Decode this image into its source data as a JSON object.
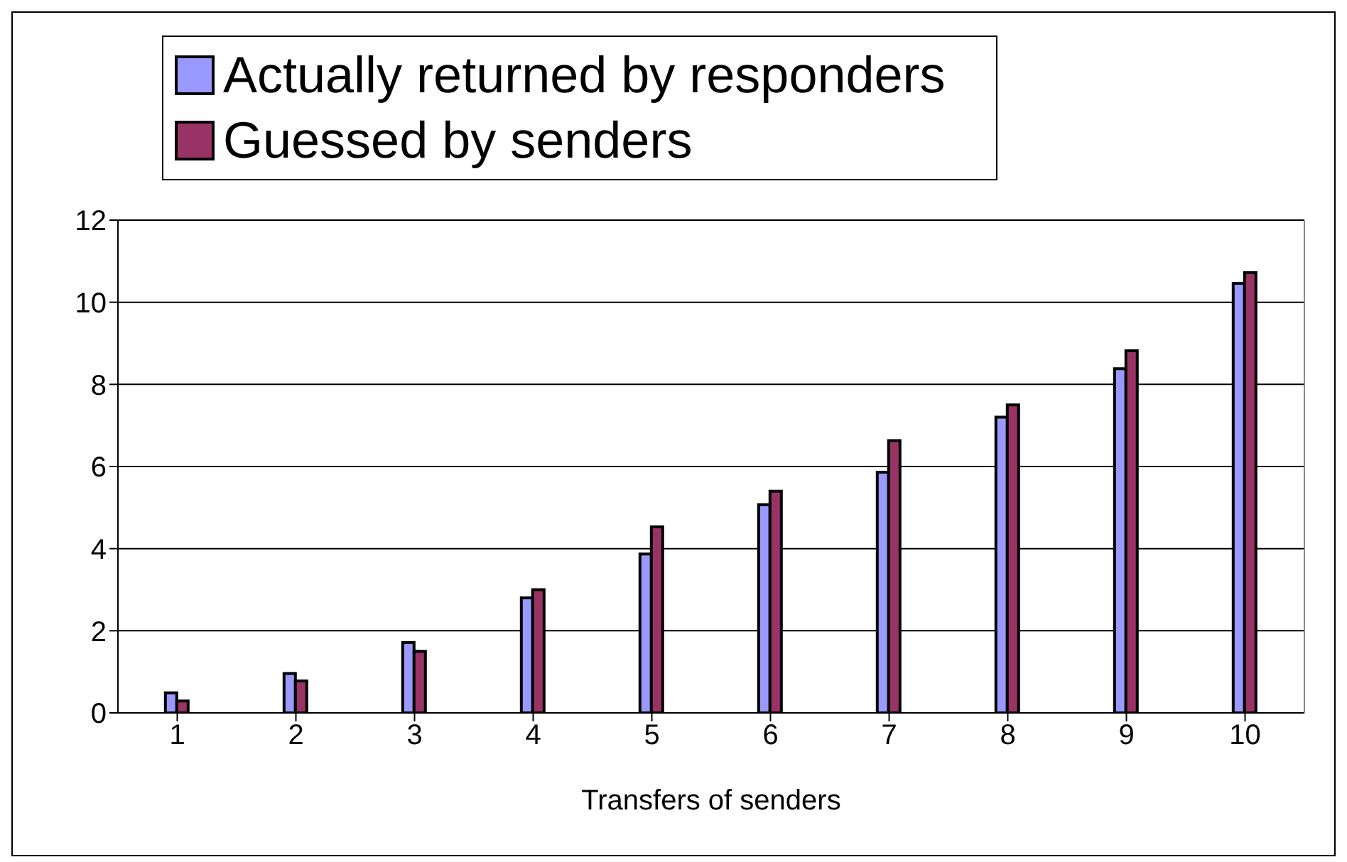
{
  "chart_data": {
    "type": "bar",
    "xlabel": "Transfers of senders",
    "categories": [
      "1",
      "2",
      "3",
      "4",
      "5",
      "6",
      "7",
      "8",
      "9",
      "10"
    ],
    "series": [
      {
        "name": "Actually returned by responders",
        "color": "#9999ff",
        "values": [
          0.49,
          0.96,
          1.71,
          2.8,
          3.87,
          5.07,
          5.86,
          7.2,
          8.38,
          10.46
        ]
      },
      {
        "name": "Guessed by senders",
        "color": "#993366",
        "values": [
          0.29,
          0.78,
          1.5,
          3.0,
          4.53,
          5.4,
          6.63,
          7.5,
          8.82,
          10.72
        ]
      }
    ],
    "ylim": [
      0,
      12
    ],
    "yticks": [
      0,
      2,
      4,
      6,
      8,
      10,
      12
    ],
    "grid": "y",
    "legend": "top"
  }
}
